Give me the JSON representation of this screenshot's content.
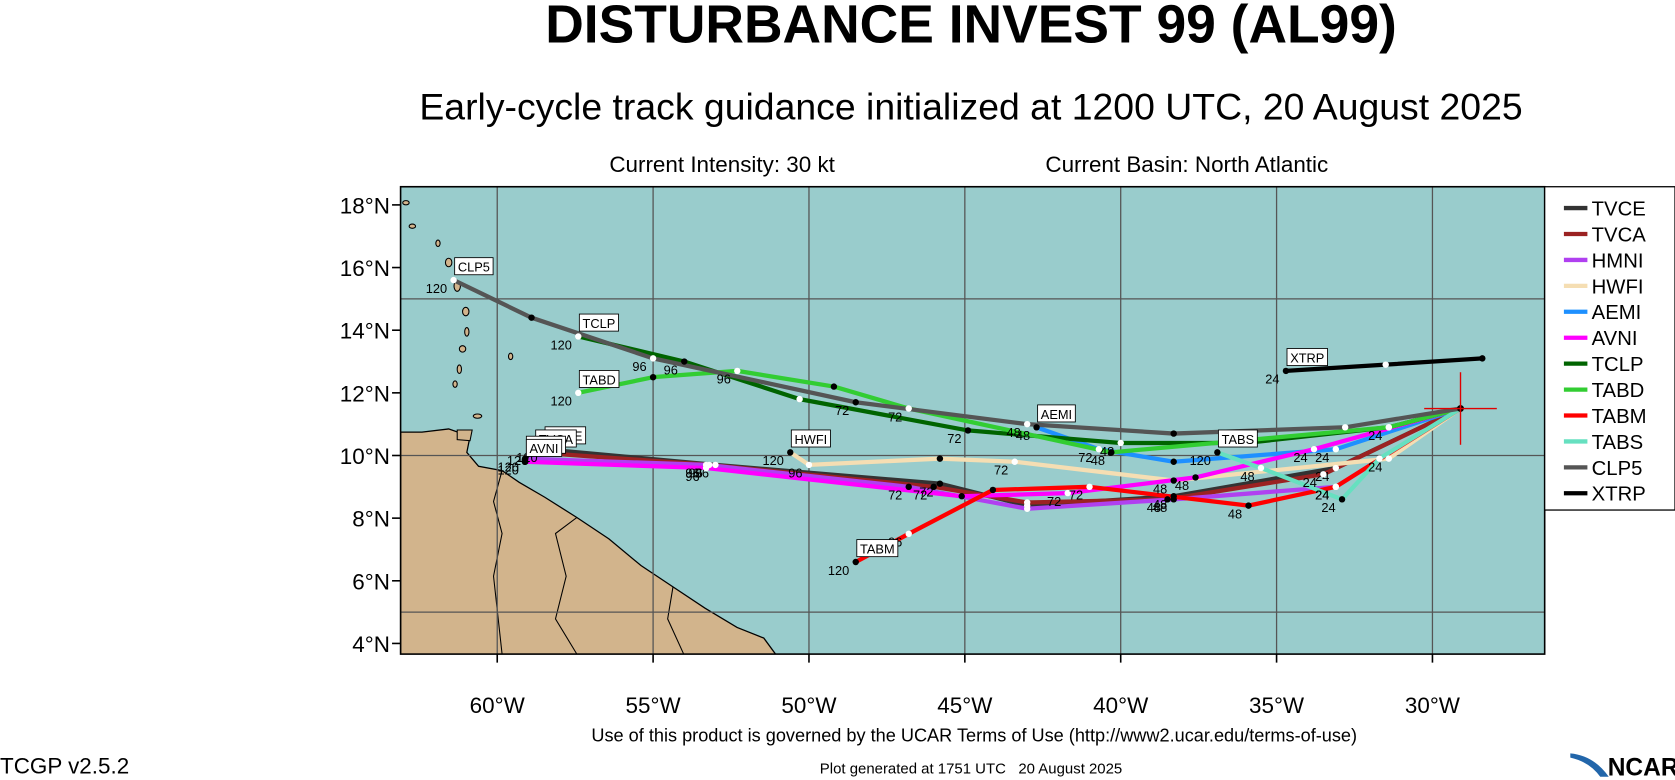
{
  "chart_data": {
    "type": "track-map",
    "title": "DISTURBANCE INVEST 99 (AL99)",
    "subtitle": "Early-cycle track guidance initialized at 1200 UTC, 20 August 2025",
    "intensity": "Current Intensity: 30 kt",
    "basin": "Current Basin: North Atlantic",
    "xlim": [
      -63.1,
      -26.4
    ],
    "ylim": [
      3.66,
      18.58
    ],
    "xticks": [
      {
        "value": -60,
        "label": "60°W"
      },
      {
        "value": -55,
        "label": "55°W"
      },
      {
        "value": -50,
        "label": "50°W"
      },
      {
        "value": -45,
        "label": "45°W"
      },
      {
        "value": -40,
        "label": "40°W"
      },
      {
        "value": -35,
        "label": "35°W"
      },
      {
        "value": -30,
        "label": "30°W"
      }
    ],
    "yticks": [
      {
        "value": 4,
        "label": "4°N"
      },
      {
        "value": 6,
        "label": "6°N"
      },
      {
        "value": 8,
        "label": "8°N"
      },
      {
        "value": 10,
        "label": "10°N"
      },
      {
        "value": 12,
        "label": "12°N"
      },
      {
        "value": 14,
        "label": "14°N"
      },
      {
        "value": 16,
        "label": "16°N"
      },
      {
        "value": 18,
        "label": "18°N"
      }
    ],
    "lat_grid": [
      5,
      10,
      15
    ],
    "grid": true,
    "legend": "right-outside",
    "current_position": {
      "x": -29.1,
      "y": 11.5,
      "color": "#e00000"
    },
    "series": [
      {
        "name": "TVCE",
        "color": "#333333",
        "x": [
          -29.1,
          -33.1,
          -38.3,
          -43.0,
          -45.8,
          -53.0,
          -58.5
        ],
        "values": [
          11.5,
          9.6,
          8.7,
          8.4,
          9.1,
          9.7,
          10.2
        ],
        "hours": [
          null,
          24,
          48,
          null,
          72,
          96,
          120
        ]
      },
      {
        "name": "TVCA",
        "color": "#9b2222",
        "x": [
          -29.1,
          -33.5,
          -38.5,
          -43.0,
          -46.0,
          -53.2,
          -58.8
        ],
        "values": [
          11.5,
          9.4,
          8.6,
          8.5,
          9.0,
          9.7,
          10.1
        ],
        "hours": [
          null,
          24,
          48,
          null,
          72,
          96,
          120
        ]
      },
      {
        "name": "HMNI",
        "color": "#b040f0",
        "x": [
          -29.1,
          -33.1,
          -38.3,
          -43.0,
          -46.8,
          -53.3,
          -59.1
        ],
        "values": [
          11.5,
          9.0,
          8.6,
          8.3,
          9.0,
          9.7,
          9.9
        ],
        "hours": [
          null,
          24,
          48,
          null,
          72,
          96,
          120
        ]
      },
      {
        "name": "HWFI",
        "color": "#f5deb3",
        "x": [
          -29.1,
          -31.4,
          -38.3,
          -43.4,
          -45.8,
          -50.0,
          -50.6
        ],
        "values": [
          11.5,
          9.9,
          9.2,
          9.8,
          9.9,
          9.7,
          10.1
        ],
        "hours": [
          null,
          24,
          48,
          72,
          null,
          96,
          120
        ]
      },
      {
        "name": "AEMI",
        "color": "#1e90ff",
        "x": [
          -29.1,
          -33.1,
          -38.3,
          -40.7,
          -42.7
        ],
        "values": [
          11.5,
          10.2,
          9.8,
          10.2,
          10.9
        ],
        "hours": [
          null,
          24,
          null,
          72,
          48
        ]
      },
      {
        "name": "AVNI",
        "color": "#ff00ff",
        "x": [
          -29.1,
          -33.8,
          -37.6,
          -41.7,
          -45.1,
          -53.3,
          -59.1
        ],
        "values": [
          11.5,
          10.2,
          9.3,
          8.8,
          8.7,
          9.6,
          9.8
        ],
        "hours": [
          null,
          24,
          48,
          72,
          null,
          96,
          120
        ]
      },
      {
        "name": "TCLP",
        "color": "#006400",
        "x": [
          -29.1,
          -31.4,
          -36.0,
          -40.0,
          -44.9,
          -50.3,
          -54.0,
          -57.4
        ],
        "values": [
          11.5,
          10.9,
          10.4,
          10.4,
          10.8,
          11.8,
          13.0,
          13.8
        ],
        "hours": [
          null,
          24,
          null,
          48,
          72,
          null,
          96,
          120
        ]
      },
      {
        "name": "TABD",
        "color": "#32cd32",
        "x": [
          -29.1,
          -31.4,
          -40.3,
          -46.8,
          -49.2,
          -52.3,
          -55.0,
          -57.4
        ],
        "values": [
          11.5,
          10.9,
          10.1,
          11.5,
          12.2,
          12.7,
          12.5,
          12.0
        ],
        "hours": [
          null,
          null,
          48,
          72,
          null,
          96,
          null,
          120
        ]
      },
      {
        "name": "TABM",
        "color": "#ff0000",
        "x": [
          -29.1,
          -33.1,
          -35.9,
          -41.0,
          -44.1,
          -46.8,
          -48.5
        ],
        "values": [
          11.5,
          9.0,
          8.4,
          9.0,
          8.9,
          7.5,
          6.6
        ],
        "hours": [
          null,
          24,
          48,
          72,
          null,
          96,
          120
        ]
      },
      {
        "name": "TABS",
        "color": "#66e0c0",
        "x": [
          -29.1,
          -31.7,
          -32.9,
          -35.5,
          -36.9
        ],
        "values": [
          11.5,
          9.9,
          8.6,
          9.6,
          10.1
        ],
        "hours": [
          null,
          null,
          24,
          48,
          120
        ]
      },
      {
        "name": "CLP5",
        "color": "#555555",
        "x": [
          -29.1,
          -32.8,
          -38.3,
          -43.0,
          -48.5,
          -55.0,
          -58.9,
          -61.4
        ],
        "values": [
          11.5,
          10.9,
          10.7,
          11.0,
          11.7,
          13.1,
          14.4,
          15.6
        ],
        "hours": [
          null,
          null,
          null,
          48,
          72,
          96,
          null,
          120
        ]
      },
      {
        "name": "XTRP",
        "color": "#000000",
        "x": [
          -28.4,
          -31.5,
          -34.7
        ],
        "values": [
          13.1,
          12.9,
          12.7
        ],
        "hours": [
          null,
          null,
          24
        ]
      }
    ]
  },
  "footer": {
    "terms": "Use of this product is governed by the UCAR Terms of Use (http://www2.ucar.edu/terms-of-use)",
    "version": "TCGP v2.5.2",
    "generated": "Plot generated at 1751 UTC   20 August 2025",
    "logo": "NCAR"
  }
}
